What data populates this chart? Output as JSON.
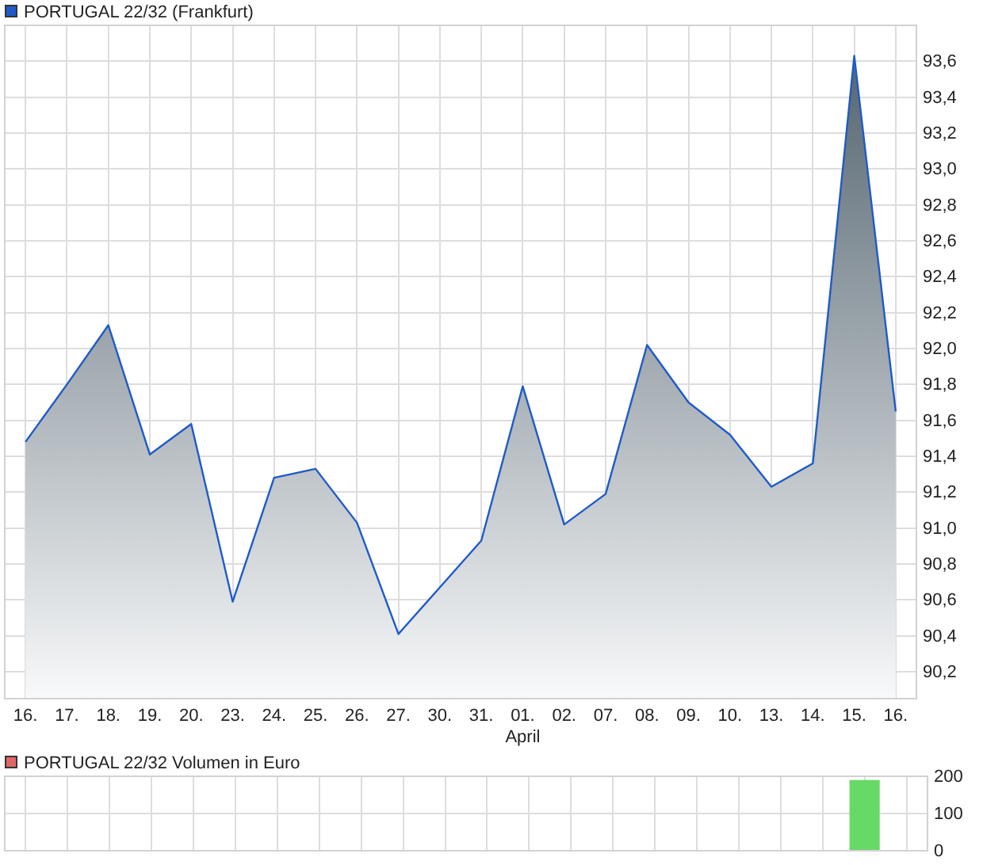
{
  "chart_data": [
    {
      "type": "area",
      "categories": [
        "16.",
        "17.",
        "18.",
        "19.",
        "20.",
        "23.",
        "24.",
        "25.",
        "26.",
        "27.",
        "30.",
        "31.",
        "01.\nApril",
        "02.",
        "07.",
        "08.",
        "09.",
        "10.",
        "13.",
        "14.",
        "15.",
        "16."
      ],
      "series": [
        {
          "name": "PORTUGAL 22/32 (Frankfurt)",
          "color": "#1f5bc8",
          "values": [
            91.48,
            91.8,
            92.13,
            91.41,
            91.58,
            90.59,
            91.28,
            91.33,
            91.03,
            90.41,
            90.67,
            90.93,
            91.79,
            91.02,
            91.19,
            92.02,
            91.7,
            91.52,
            91.23,
            91.36,
            93.63,
            91.65
          ]
        }
      ],
      "ylim": [
        90.05,
        93.8
      ],
      "yticks": [
        {
          "value": 90.2,
          "label": "90,2"
        },
        {
          "value": 90.4,
          "label": "90,4"
        },
        {
          "value": 90.6,
          "label": "90,6"
        },
        {
          "value": 90.8,
          "label": "90,8"
        },
        {
          "value": 91.0,
          "label": "91,0"
        },
        {
          "value": 91.2,
          "label": "91,2"
        },
        {
          "value": 91.4,
          "label": "91,4"
        },
        {
          "value": 91.6,
          "label": "91,6"
        },
        {
          "value": 91.8,
          "label": "91,8"
        },
        {
          "value": 92.0,
          "label": "92,0"
        },
        {
          "value": 92.2,
          "label": "92,2"
        },
        {
          "value": 92.4,
          "label": "92,4"
        },
        {
          "value": 92.6,
          "label": "92,6"
        },
        {
          "value": 92.8,
          "label": "92,8"
        },
        {
          "value": 93.0,
          "label": "93,0"
        },
        {
          "value": 93.2,
          "label": "93,2"
        },
        {
          "value": 93.4,
          "label": "93,4"
        },
        {
          "value": 93.6,
          "label": "93,6"
        }
      ],
      "grid": true,
      "legend": "top left"
    },
    {
      "type": "bar",
      "categories": [
        null,
        null,
        null,
        null,
        null,
        null,
        null,
        null,
        null,
        null,
        null,
        null,
        null,
        null,
        null,
        null,
        null,
        null,
        null,
        null,
        null,
        null
      ],
      "series": [
        {
          "name": "PORTUGAL 22/32 Volumen in Euro",
          "color": "#e06666",
          "colors": [
            null,
            null,
            null,
            null,
            null,
            null,
            null,
            null,
            null,
            null,
            null,
            null,
            null,
            null,
            null,
            null,
            null,
            null,
            null,
            null,
            "#66d966",
            null
          ],
          "values": [
            null,
            null,
            null,
            null,
            null,
            null,
            null,
            null,
            null,
            null,
            null,
            null,
            null,
            null,
            null,
            null,
            null,
            null,
            null,
            null,
            190,
            null
          ]
        }
      ],
      "ylim": [
        0,
        200
      ],
      "yticks": [
        0,
        100,
        200
      ],
      "grid": true,
      "legend": "top left",
      "tick_labels": "y"
    }
  ]
}
